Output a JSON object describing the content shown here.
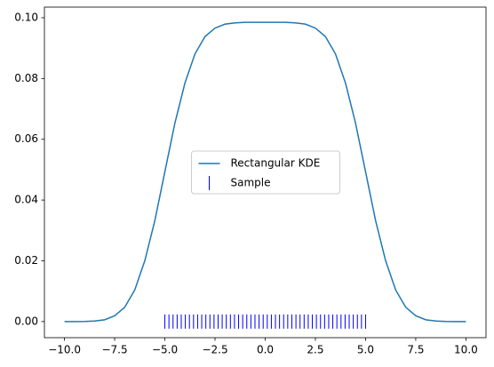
{
  "chart_data": {
    "type": "line",
    "series": [
      {
        "name": "Rectangular KDE",
        "color": "#1f77b4",
        "kind": "line",
        "x": [
          -10,
          -9.5,
          -9,
          -8.5,
          -8,
          -7.5,
          -7,
          -6.5,
          -6,
          -5.5,
          -5,
          -4.5,
          -4,
          -3.5,
          -3,
          -2.5,
          -2,
          -1.5,
          -1,
          -0.5,
          0,
          0.5,
          1,
          1.5,
          2,
          2.5,
          3,
          3.5,
          4,
          4.5,
          5,
          5.5,
          6,
          6.5,
          7,
          7.5,
          8,
          8.5,
          9,
          9.5,
          10
        ],
        "values": [
          0,
          0,
          4e-05,
          0.0002,
          0.0006,
          0.0019,
          0.0047,
          0.0104,
          0.02,
          0.0332,
          0.0493,
          0.0653,
          0.0785,
          0.0881,
          0.0938,
          0.0966,
          0.0979,
          0.0983,
          0.0985,
          0.0985,
          0.0985,
          0.0985,
          0.0985,
          0.0983,
          0.0979,
          0.0966,
          0.0938,
          0.0881,
          0.0785,
          0.0653,
          0.0493,
          0.0332,
          0.02,
          0.0104,
          0.0047,
          0.0019,
          0.0006,
          0.0002,
          4e-05,
          0,
          0
        ]
      },
      {
        "name": "Sample",
        "color": "#0000ff",
        "kind": "rug",
        "x": [
          -5,
          -4.796,
          -4.592,
          -4.388,
          -4.184,
          -3.98,
          -3.776,
          -3.571,
          -3.367,
          -3.163,
          -2.959,
          -2.755,
          -2.551,
          -2.347,
          -2.143,
          -1.939,
          -1.735,
          -1.531,
          -1.327,
          -1.122,
          -0.918,
          -0.714,
          -0.51,
          -0.306,
          -0.102,
          0.102,
          0.306,
          0.51,
          0.714,
          0.918,
          1.122,
          1.327,
          1.531,
          1.735,
          1.939,
          2.143,
          2.347,
          2.551,
          2.755,
          2.959,
          3.163,
          3.367,
          3.571,
          3.776,
          3.98,
          4.184,
          4.388,
          4.592,
          4.796,
          5
        ],
        "values": [
          0,
          0,
          0,
          0,
          0,
          0,
          0,
          0,
          0,
          0,
          0,
          0,
          0,
          0,
          0,
          0,
          0,
          0,
          0,
          0,
          0,
          0,
          0,
          0,
          0,
          0,
          0,
          0,
          0,
          0,
          0,
          0,
          0,
          0,
          0,
          0,
          0,
          0,
          0,
          0,
          0,
          0,
          0,
          0,
          0,
          0,
          0,
          0,
          0,
          0
        ]
      }
    ],
    "xlim": [
      -11,
      11
    ],
    "xticks": [
      {
        "value": -10,
        "label": "−10.0"
      },
      {
        "value": -7.5,
        "label": "−7.5"
      },
      {
        "value": -5,
        "label": "−5.0"
      },
      {
        "value": -2.5,
        "label": "−2.5"
      },
      {
        "value": 0,
        "label": "0.0"
      },
      {
        "value": 2.5,
        "label": "2.5"
      },
      {
        "value": 5,
        "label": "5.0"
      },
      {
        "value": 7.5,
        "label": "7.5"
      },
      {
        "value": 10,
        "label": "10.0"
      }
    ],
    "ylim": [
      -0.0053,
      0.1035
    ],
    "yticks": [
      {
        "value": 0,
        "label": "0.00"
      },
      {
        "value": 0.02,
        "label": "0.02"
      },
      {
        "value": 0.04,
        "label": "0.04"
      },
      {
        "value": 0.06,
        "label": "0.06"
      },
      {
        "value": 0.08,
        "label": "0.08"
      },
      {
        "value": 0.1,
        "label": "0.10"
      }
    ],
    "grid": false,
    "legend": "center"
  }
}
